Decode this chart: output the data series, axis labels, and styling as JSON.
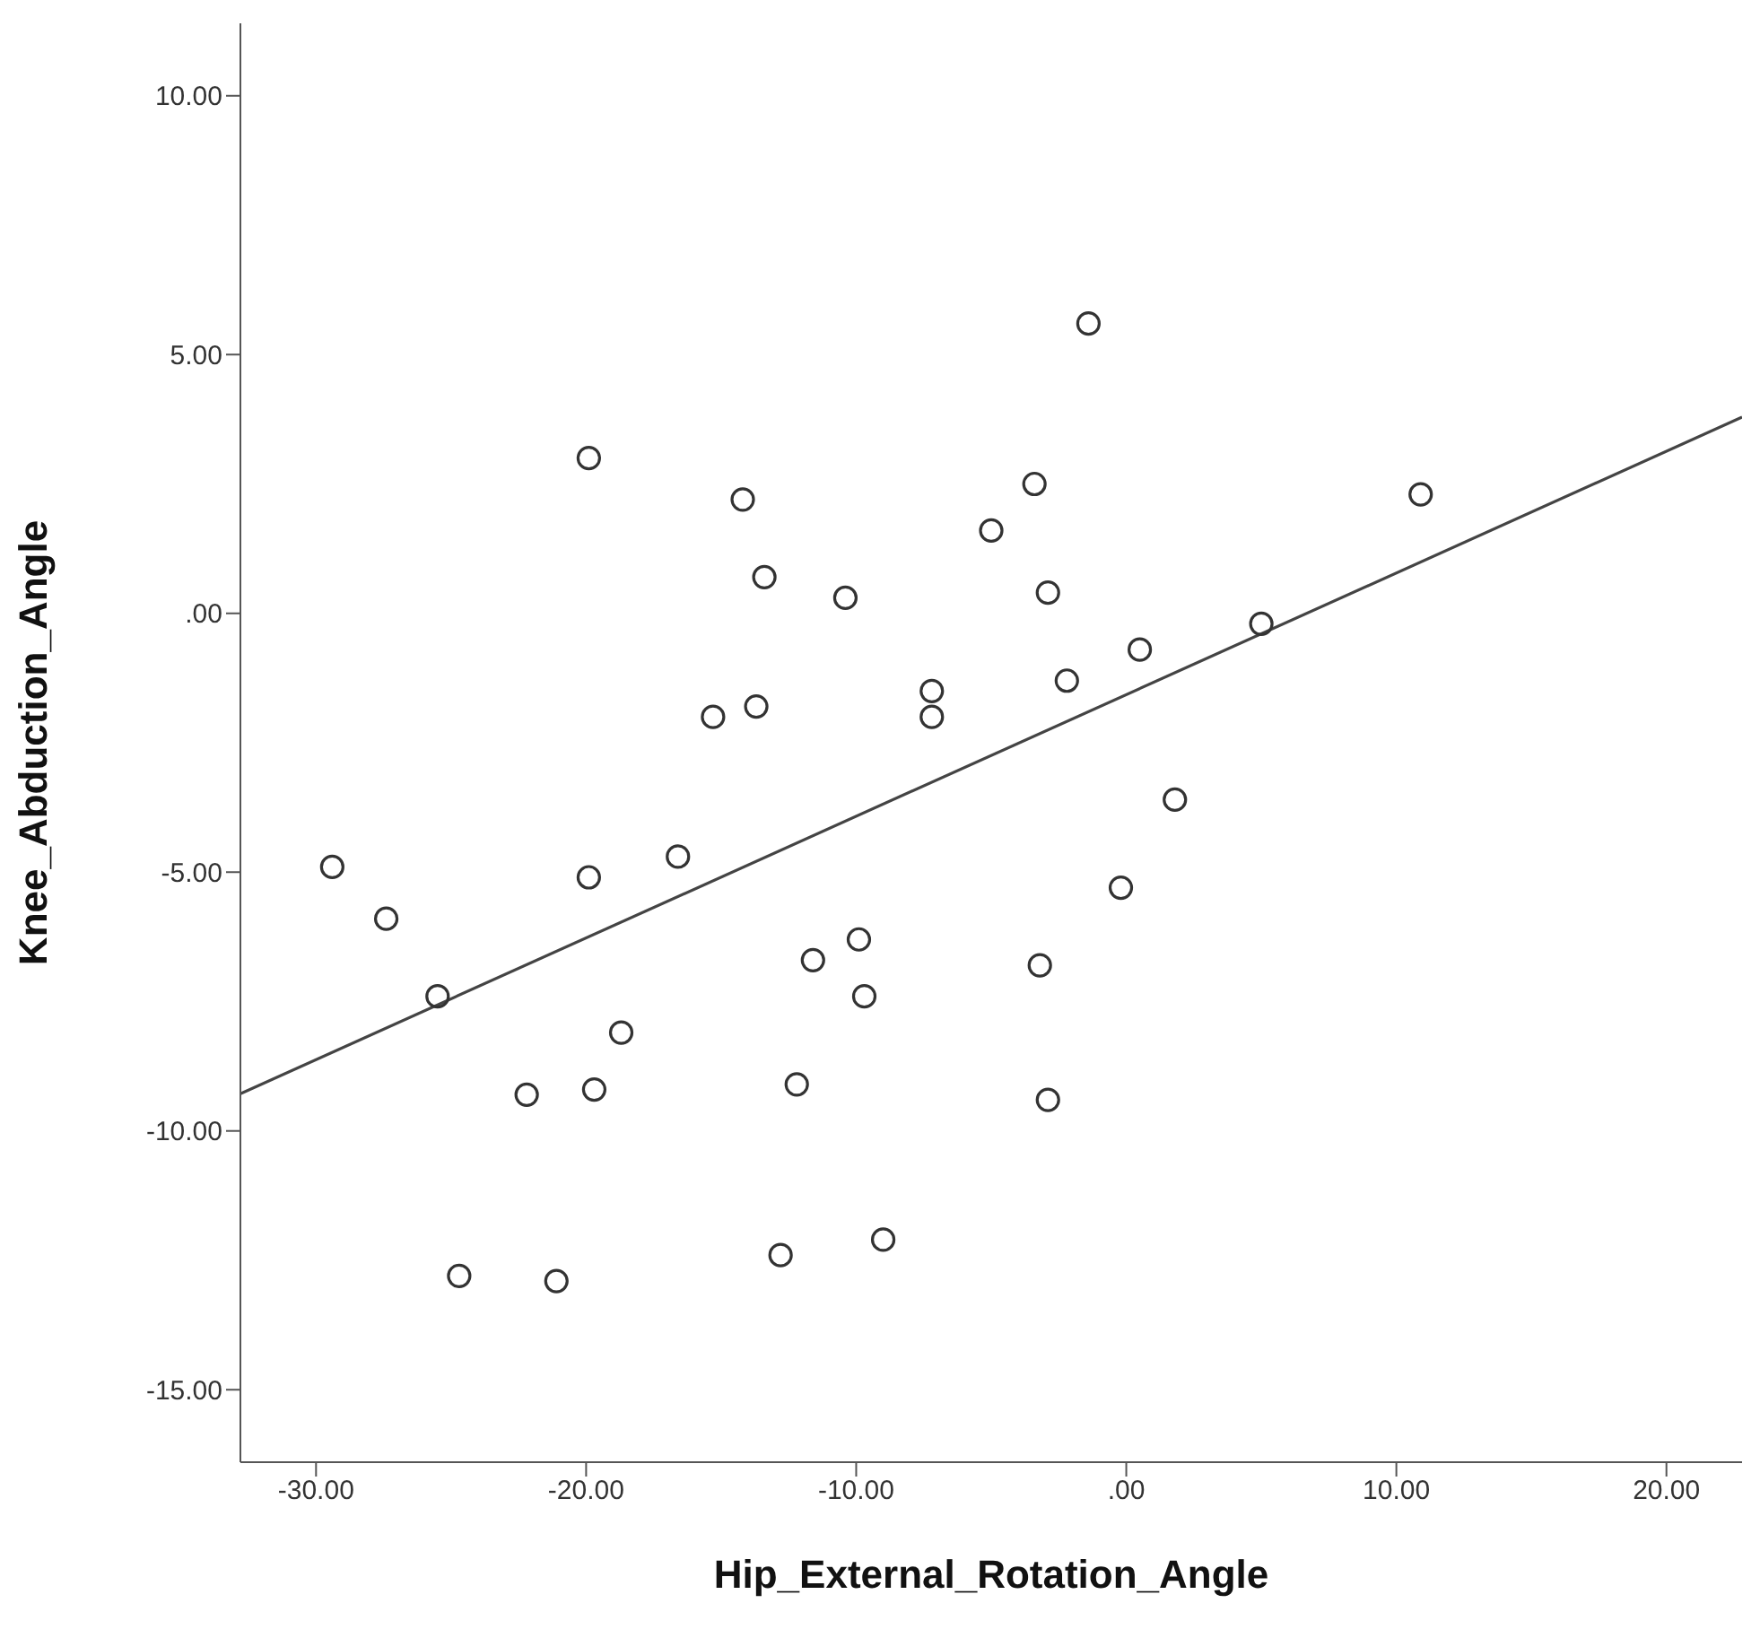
{
  "chart_data": {
    "type": "scatter",
    "xlabel": "Hip_External_Rotation_Angle",
    "ylabel": "Knee_Abduction_Angle",
    "xlim": [
      -32.8,
      22.8
    ],
    "ylim": [
      -16.4,
      11.4
    ],
    "xticks": [
      {
        "value": -30,
        "label": "-30.00"
      },
      {
        "value": -20,
        "label": "-20.00"
      },
      {
        "value": -10,
        "label": "-10.00"
      },
      {
        "value": 0,
        "label": ".00"
      },
      {
        "value": 10,
        "label": "10.00"
      },
      {
        "value": 20,
        "label": "20.00"
      }
    ],
    "yticks": [
      {
        "value": -15,
        "label": "-15.00"
      },
      {
        "value": -10,
        "label": "-10.00"
      },
      {
        "value": -5,
        "label": "-5.00"
      },
      {
        "value": 0,
        "label": ".00"
      },
      {
        "value": 5,
        "label": "5.00"
      },
      {
        "value": 10,
        "label": "10.00"
      }
    ],
    "series": [
      {
        "marker": "circle",
        "color": "#333333",
        "x": [
          -19.9,
          -14.2,
          -13.4,
          -10.4,
          -15.3,
          -13.7,
          -1.4,
          -3.4,
          -5.0,
          -2.9,
          10.9,
          -7.2,
          -7.2,
          -2.2,
          0.5,
          5.0,
          -29.4,
          -27.4,
          -25.5,
          -24.7,
          -21.1,
          -22.2,
          -19.7,
          -18.7,
          -19.9,
          -16.6,
          -11.6,
          -9.9,
          -9.7,
          -12.2,
          -12.8,
          -9.0,
          1.8,
          -0.2,
          -3.2,
          -2.9
        ],
        "values": [
          3.0,
          2.2,
          0.7,
          0.3,
          -2.0,
          -1.8,
          5.6,
          2.5,
          1.6,
          0.4,
          2.3,
          -1.5,
          -2.0,
          -1.3,
          -0.7,
          -0.2,
          -4.9,
          -5.9,
          -7.4,
          -12.8,
          -12.9,
          -9.3,
          -9.2,
          -8.1,
          -5.1,
          -4.7,
          -6.7,
          -6.3,
          -7.4,
          -9.1,
          -12.4,
          -12.1,
          -3.6,
          -5.3,
          -6.8,
          -9.4
        ]
      },
      {
        "type": "line",
        "marker": "none",
        "color": "#444444",
        "x": [
          -32.8,
          22.8
        ],
        "values": [
          -9.28,
          3.79
        ]
      }
    ]
  }
}
